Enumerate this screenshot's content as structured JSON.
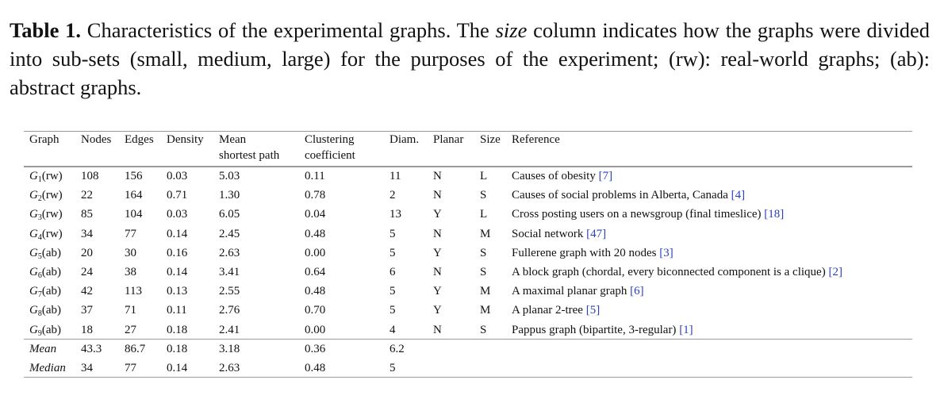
{
  "caption": {
    "label": "Table 1.",
    "text_before": "Characteristics of the experimental graphs. The",
    "em": "size",
    "text_after": "column indicates how the graphs were divided into sub-sets (small, medium, large) for the purposes of the experiment; (rw): real-world graphs; (ab): abstract graphs."
  },
  "table": {
    "headers": [
      [
        "Graph"
      ],
      [
        "Nodes"
      ],
      [
        "Edges"
      ],
      [
        "Density"
      ],
      [
        "Mean",
        "shortest path"
      ],
      [
        "Clustering",
        "coefficient"
      ],
      [
        "Diam."
      ],
      [
        "Planar"
      ],
      [
        "Size"
      ],
      [
        "Reference"
      ]
    ],
    "rows": [
      {
        "g": "G",
        "sub": "1",
        "kind": "(rw)",
        "nodes": "108",
        "edges": "156",
        "density": "0.03",
        "msp": "5.03",
        "cc": "0.11",
        "diam": "11",
        "planar": "N",
        "size": "L",
        "ref_text": "Causes of obesity",
        "ref_num": "[7]"
      },
      {
        "g": "G",
        "sub": "2",
        "kind": "(rw)",
        "nodes": "22",
        "edges": "164",
        "density": "0.71",
        "msp": "1.30",
        "cc": "0.78",
        "diam": "2",
        "planar": "N",
        "size": "S",
        "ref_text": "Causes of social problems in Alberta, Canada",
        "ref_num": "[4]"
      },
      {
        "g": "G",
        "sub": "3",
        "kind": "(rw)",
        "nodes": "85",
        "edges": "104",
        "density": "0.03",
        "msp": "6.05",
        "cc": "0.04",
        "diam": "13",
        "planar": "Y",
        "size": "L",
        "ref_text": "Cross posting users on a newsgroup (final timeslice)",
        "ref_num": "[18]"
      },
      {
        "g": "G",
        "sub": "4",
        "kind": "(rw)",
        "nodes": "34",
        "edges": "77",
        "density": "0.14",
        "msp": "2.45",
        "cc": "0.48",
        "diam": "5",
        "planar": "N",
        "size": "M",
        "ref_text": "Social network",
        "ref_num": "[47]"
      },
      {
        "g": "G",
        "sub": "5",
        "kind": "(ab)",
        "nodes": "20",
        "edges": "30",
        "density": "0.16",
        "msp": "2.63",
        "cc": "0.00",
        "diam": "5",
        "planar": "Y",
        "size": "S",
        "ref_text": "Fullerene graph with 20 nodes",
        "ref_num": "[3]"
      },
      {
        "g": "G",
        "sub": "6",
        "kind": "(ab)",
        "nodes": "24",
        "edges": "38",
        "density": "0.14",
        "msp": "3.41",
        "cc": "0.64",
        "diam": "6",
        "planar": "N",
        "size": "S",
        "ref_text": "A block graph (chordal, every biconnected component is a clique)",
        "ref_num": "[2]"
      },
      {
        "g": "G",
        "sub": "7",
        "kind": "(ab)",
        "nodes": "42",
        "edges": "113",
        "density": "0.13",
        "msp": "2.55",
        "cc": "0.48",
        "diam": "5",
        "planar": "Y",
        "size": "M",
        "ref_text": "A maximal planar graph",
        "ref_num": "[6]"
      },
      {
        "g": "G",
        "sub": "8",
        "kind": "(ab)",
        "nodes": "37",
        "edges": "71",
        "density": "0.11",
        "msp": "2.76",
        "cc": "0.70",
        "diam": "5",
        "planar": "Y",
        "size": "M",
        "ref_text": "A planar 2-tree",
        "ref_num": "[5]"
      },
      {
        "g": "G",
        "sub": "9",
        "kind": "(ab)",
        "nodes": "18",
        "edges": "27",
        "density": "0.18",
        "msp": "2.41",
        "cc": "0.00",
        "diam": "4",
        "planar": "N",
        "size": "S",
        "ref_text": "Pappus graph (bipartite, 3-regular)",
        "ref_num": "[1]"
      }
    ],
    "summary": [
      {
        "label": "Mean",
        "nodes": "43.3",
        "edges": "86.7",
        "density": "0.18",
        "msp": "3.18",
        "cc": "0.36",
        "diam": "6.2"
      },
      {
        "label": "Median",
        "nodes": "34",
        "edges": "77",
        "density": "0.14",
        "msp": "2.63",
        "cc": "0.48",
        "diam": "5"
      }
    ]
  },
  "colors": {
    "text": "#111111",
    "reference_link": "#2a3fc0",
    "rule": "#9a9a9a"
  }
}
